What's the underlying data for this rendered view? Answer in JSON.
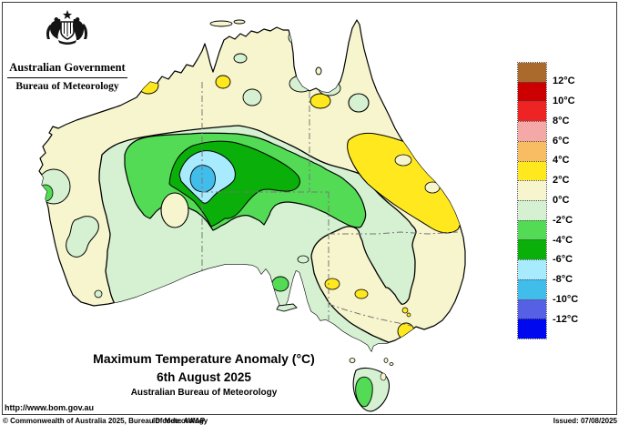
{
  "header": {
    "government": "Australian Government",
    "bureau": "Bureau of Meteorology"
  },
  "title_block": {
    "title": "Maximum Temperature Anomaly (°C)",
    "date": "6th August 2025",
    "org": "Australian Bureau of Meteorology"
  },
  "footer": {
    "url": "http://www.bom.gov.au",
    "copyright": "© Commonwealth of Australia 2025, Bureau of Meteorology",
    "id_code": "ID code: AWAP",
    "issued": "Issued: 07/08/2025"
  },
  "legend": {
    "labels": [
      "12°C",
      "10°C",
      "8°C",
      "6°C",
      "4°C",
      "2°C",
      "0°C",
      "-2°C",
      "-4°C",
      "-6°C",
      "-8°C",
      "-10°C",
      "-12°C"
    ],
    "band_colors": [
      "#A96A2C",
      "#CC0000",
      "#EE2424",
      "#F5A8A8",
      "#F8BC62",
      "#FFE91E",
      "#F7F5CD",
      "#D5F1D2",
      "#53DB55",
      "#0AAF0A",
      "#A9EBFE",
      "#41BDEB",
      "#5560E4",
      "#0008F0"
    ]
  },
  "map_data": {
    "type": "choropleth-anomaly-map",
    "region": "Australia",
    "regions": [
      {
        "area": "northern Australia, Cape York, east coast, southwest WA",
        "anomaly": "0 to +2°C"
      },
      {
        "area": "central Queensland (large patch) and scattered small spots",
        "anomaly": "+2 to +4°C"
      },
      {
        "area": "most of central, southern and western interior",
        "anomaly": "0 to -2°C"
      },
      {
        "area": "broad band across the central interior",
        "anomaly": "-2 to -4°C"
      },
      {
        "area": "ring in the central interior near WA/NT/SA borders",
        "anomaly": "-4 to -6°C"
      },
      {
        "area": "core area east of the WA border",
        "anomaly": "-6 to -8°C"
      },
      {
        "area": "innermost cold core",
        "anomaly": "-8 to -10°C"
      },
      {
        "area": "western Tasmania",
        "anomaly": "-2 to -4°C"
      }
    ],
    "state_borders": "dash-dot gray lines",
    "contours": "black lines at 2°C intervals"
  }
}
